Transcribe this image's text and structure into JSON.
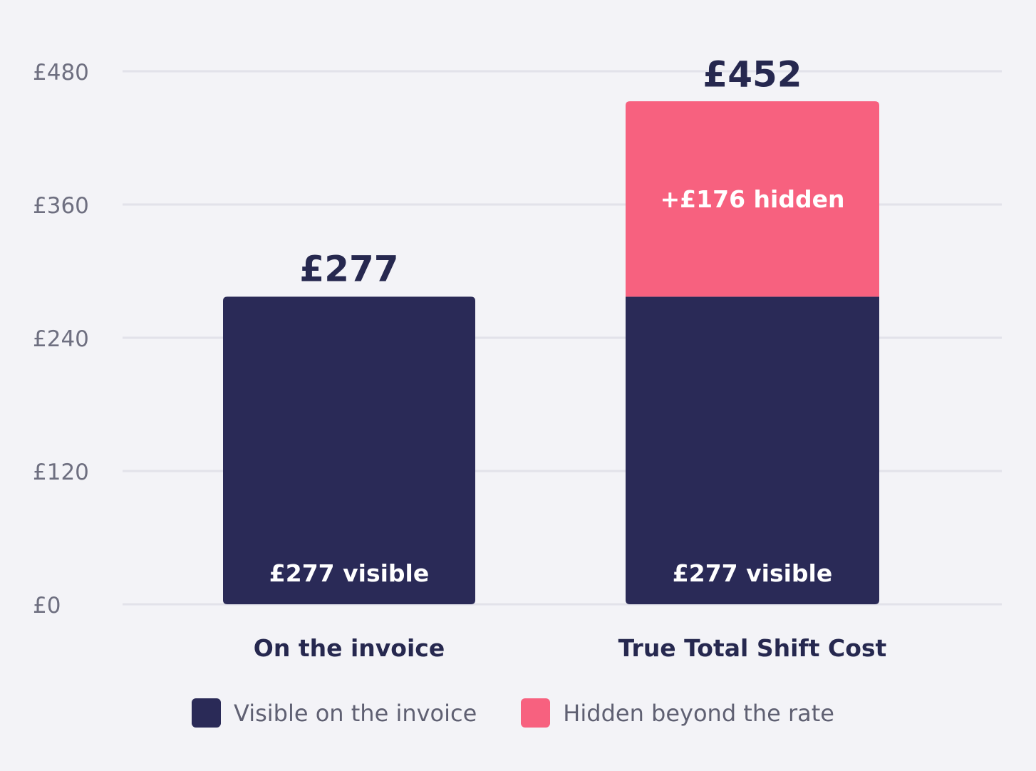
{
  "chart_data": {
    "type": "bar",
    "stacked": true,
    "title": "",
    "xlabel": "",
    "ylabel": "",
    "ylim": [
      0,
      480
    ],
    "yticks": [
      0,
      120,
      240,
      360,
      480
    ],
    "ytick_labels": [
      "£0",
      "£120",
      "£240",
      "£360",
      "£480"
    ],
    "grid": true,
    "categories": [
      "On the invoice",
      "True Total Shift Cost"
    ],
    "totals": [
      277,
      452
    ],
    "total_labels": [
      "£277",
      "£452"
    ],
    "series": [
      {
        "name": "Visible on the invoice",
        "color": "#2a2a57",
        "values": [
          277,
          277
        ],
        "labels": [
          "£277 visible",
          "£277 visible"
        ],
        "label_color": "#ffffff"
      },
      {
        "name": "Hidden beyond the rate",
        "color": "#f7617f",
        "values": [
          0,
          176
        ],
        "labels": [
          "",
          "+£176 hidden"
        ],
        "label_color": "#ffffff"
      }
    ],
    "legend_position": "bottom"
  },
  "colors": {
    "background": "#f3f3f7",
    "gridline": "#e2e2ea",
    "tick_text": "#6e6f80",
    "category_text": "#26284f",
    "total_text": "#26284f"
  }
}
